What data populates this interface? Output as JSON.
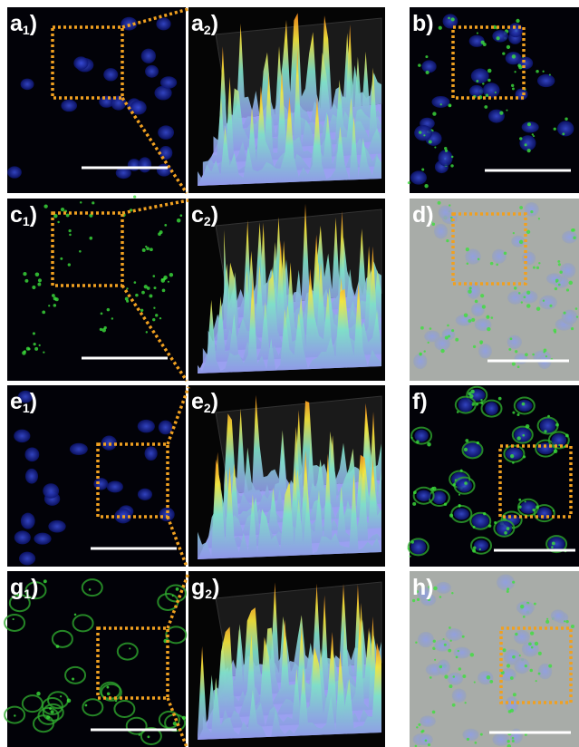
{
  "panels": [
    {
      "letter": "a",
      "sub": "1",
      "close": ")",
      "kind": "blue"
    },
    {
      "letter": "a",
      "sub": "2",
      "close": ")",
      "kind": "surface"
    },
    {
      "letter": "b",
      "close": ")",
      "kind": "merge"
    },
    {
      "letter": "c",
      "sub": "1",
      "close": ")",
      "kind": "green"
    },
    {
      "letter": "c",
      "sub": "2",
      "close": ")",
      "kind": "surface"
    },
    {
      "letter": "d",
      "close": ")",
      "kind": "dic"
    },
    {
      "letter": "e",
      "sub": "1",
      "close": ")",
      "kind": "blue"
    },
    {
      "letter": "e",
      "sub": "2",
      "close": ")",
      "kind": "surface"
    },
    {
      "letter": "f",
      "close": ")",
      "kind": "merge"
    },
    {
      "letter": "g",
      "sub": "1",
      "close": ")",
      "kind": "green"
    },
    {
      "letter": "g",
      "sub": "2",
      "close": ")",
      "kind": "surface"
    },
    {
      "letter": "h",
      "close": ")",
      "kind": "dic"
    }
  ]
}
